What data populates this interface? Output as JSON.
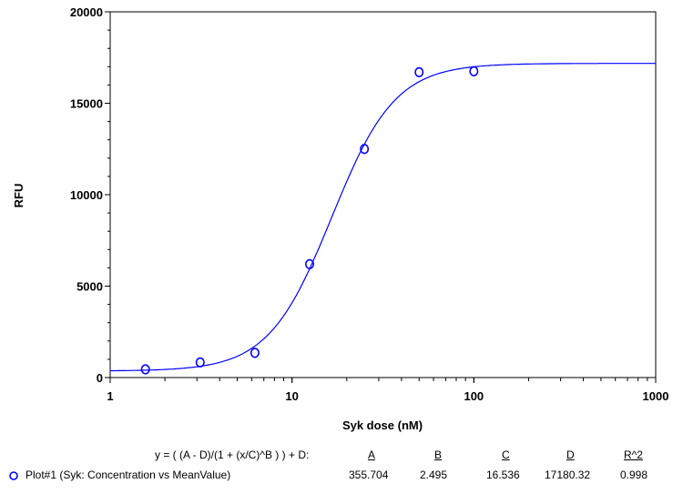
{
  "chart_data": {
    "type": "scatter",
    "title": "",
    "xlabel": "Syk dose (nM)",
    "ylabel": "RFU",
    "xscale": "log",
    "xlim": [
      1,
      1000
    ],
    "ylim": [
      0,
      20000
    ],
    "xticks": [
      "1",
      "10",
      "100",
      "1000"
    ],
    "yticks": [
      "0",
      "5000",
      "10000",
      "15000",
      "20000"
    ],
    "series": [
      {
        "name": "Plot#1 (Syk: Concentration vs MeanValue)",
        "color": "#0000ff",
        "x": [
          1.5625,
          3.125,
          6.25,
          12.5,
          25,
          50,
          100
        ],
        "y": [
          450,
          830,
          1350,
          6200,
          12500,
          16700,
          16750
        ]
      }
    ],
    "fit": {
      "equation": "y = ( (A - D)/(1 + (x/C)^B ) ) + D:",
      "headers": [
        "A",
        "B",
        "C",
        "D",
        "R^2"
      ],
      "values": [
        "355.704",
        "2.495",
        "16.536",
        "17180.32",
        "0.998"
      ],
      "params": {
        "A": 355.704,
        "B": 2.495,
        "C": 16.536,
        "D": 17180.32
      }
    },
    "legend": "bottom"
  }
}
